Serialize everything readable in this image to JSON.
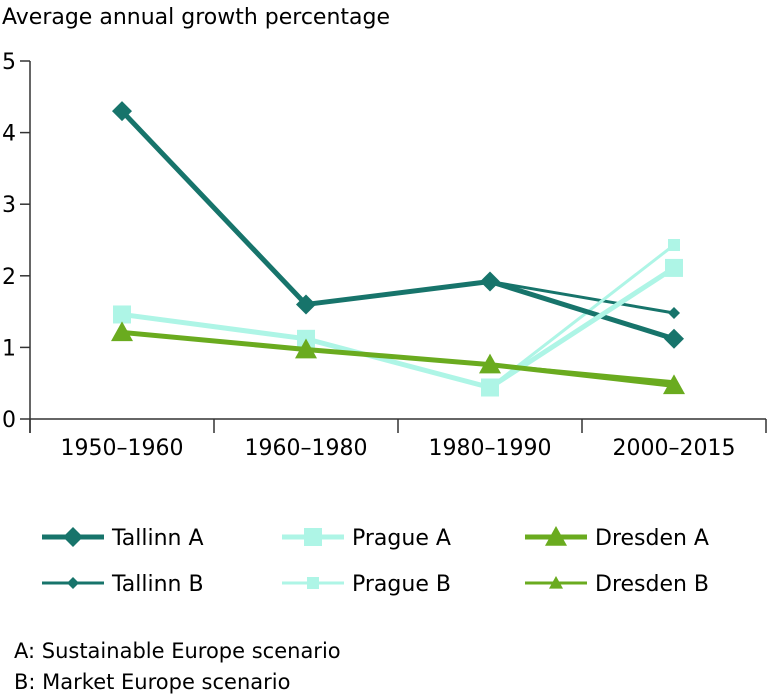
{
  "chart_data": {
    "type": "line",
    "ylabel": "Average annual growth percentage",
    "categories": [
      "1950–1960",
      "1960–1980",
      "1980–1990",
      "2000–2015"
    ],
    "ylim": [
      0,
      5
    ],
    "yticks": [
      "0",
      "1",
      "2",
      "3",
      "4",
      "5"
    ],
    "series": [
      {
        "name": "Tallinn A",
        "color": "#17746b",
        "marker": "diamond",
        "weight": "heavy",
        "values": [
          4.3,
          1.6,
          1.92,
          1.12
        ]
      },
      {
        "name": "Tallinn B",
        "color": "#17746b",
        "marker": "diamond",
        "weight": "light",
        "values": [
          4.3,
          1.6,
          1.92,
          1.48
        ]
      },
      {
        "name": "Prague A",
        "color": "#aef5e6",
        "marker": "square",
        "weight": "heavy",
        "values": [
          1.46,
          1.12,
          0.44,
          2.11
        ]
      },
      {
        "name": "Prague B",
        "color": "#aef5e6",
        "marker": "square",
        "weight": "light",
        "values": [
          1.46,
          1.12,
          0.44,
          2.43
        ]
      },
      {
        "name": "Dresden A",
        "color": "#6aab1f",
        "marker": "triangle",
        "weight": "heavy",
        "values": [
          1.21,
          0.97,
          0.76,
          0.47
        ]
      },
      {
        "name": "Dresden B",
        "color": "#6aab1f",
        "marker": "triangle",
        "weight": "light",
        "values": [
          1.21,
          0.97,
          0.76,
          0.52
        ]
      }
    ]
  },
  "legend_order": [
    "Tallinn A",
    "Prague A",
    "Dresden A",
    "Tallinn B",
    "Prague B",
    "Dresden B"
  ],
  "notes": {
    "a": "A: Sustainable Europe scenario",
    "b": "B: Market Europe scenario"
  }
}
